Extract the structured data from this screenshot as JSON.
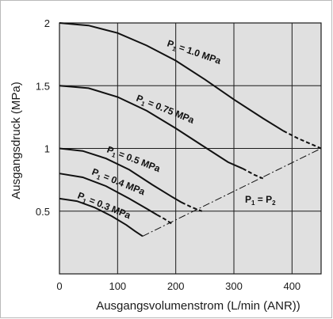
{
  "colors": {
    "plot_background": "#e0e0e0",
    "grid": "#1a1a1a",
    "curve": "#111111",
    "frame": "#b9b9b9"
  },
  "chart_data": {
    "type": "line",
    "title": "",
    "xlabel": "Ausgangsvolumenstrom (L/min (ANR))",
    "ylabel": "Ausgangsdruck (MPa)",
    "xlim": [
      0,
      450
    ],
    "ylim": [
      0,
      2
    ],
    "x_ticks": [
      "0",
      "100",
      "200",
      "300",
      "400"
    ],
    "y_ticks": [
      "0.5",
      "1",
      "1.5",
      "2"
    ],
    "grid": true,
    "legend": "none",
    "series": [
      {
        "name": "P1 = 1.0 MPa",
        "label_main": "P",
        "label_sub": "1",
        "label_rest": " = 1.0 MPa",
        "solid": [
          [
            0,
            2.0
          ],
          [
            50,
            1.98
          ],
          [
            100,
            1.92
          ],
          [
            150,
            1.82
          ],
          [
            200,
            1.7
          ],
          [
            250,
            1.55
          ],
          [
            300,
            1.39
          ],
          [
            350,
            1.24
          ],
          [
            385,
            1.14
          ]
        ],
        "dashed": [
          [
            385,
            1.14
          ],
          [
            410,
            1.08
          ],
          [
            450,
            1.0
          ]
        ]
      },
      {
        "name": "P1 = 0.75 MPa",
        "label_main": "P",
        "label_sub": "1",
        "label_rest": " = 0.75 MPa",
        "solid": [
          [
            0,
            1.5
          ],
          [
            50,
            1.48
          ],
          [
            100,
            1.41
          ],
          [
            150,
            1.3
          ],
          [
            200,
            1.16
          ],
          [
            250,
            1.01
          ],
          [
            290,
            0.89
          ],
          [
            315,
            0.84
          ]
        ],
        "dashed": [
          [
            315,
            0.84
          ],
          [
            335,
            0.79
          ],
          [
            350,
            0.76
          ]
        ]
      },
      {
        "name": "P1 = 0.5 MPa",
        "label_main": "P",
        "label_sub": "1",
        "label_rest": " = 0.5 MPa",
        "solid": [
          [
            0,
            1.0
          ],
          [
            40,
            0.98
          ],
          [
            80,
            0.92
          ],
          [
            120,
            0.83
          ],
          [
            160,
            0.71
          ],
          [
            195,
            0.61
          ],
          [
            210,
            0.57
          ]
        ],
        "dashed": [
          [
            210,
            0.57
          ],
          [
            228,
            0.53
          ],
          [
            245,
            0.5
          ]
        ]
      },
      {
        "name": "P1 = 0.4 MPa",
        "label_main": "P",
        "label_sub": "1",
        "label_rest": " = 0.4 MPa",
        "solid": [
          [
            0,
            0.8
          ],
          [
            40,
            0.77
          ],
          [
            80,
            0.7
          ],
          [
            120,
            0.6
          ],
          [
            150,
            0.52
          ],
          [
            168,
            0.47
          ]
        ],
        "dashed": [
          [
            168,
            0.47
          ],
          [
            180,
            0.44
          ],
          [
            193,
            0.4
          ]
        ]
      },
      {
        "name": "P1 = 0.3 MPa",
        "label_main": "P",
        "label_sub": "1",
        "label_rest": " = 0.3 MPa",
        "solid": [
          [
            0,
            0.6
          ],
          [
            30,
            0.58
          ],
          [
            60,
            0.53
          ],
          [
            90,
            0.46
          ],
          [
            115,
            0.39
          ],
          [
            130,
            0.34
          ],
          [
            143,
            0.3
          ]
        ],
        "dashed": []
      }
    ],
    "boundary_line": {
      "name": "P1 = P2",
      "label_main": "P",
      "label_sub": "1",
      "label_mid": " = P",
      "label_sub2": "2",
      "style": "dash-dot",
      "points": [
        [
          143,
          0.3
        ],
        [
          450,
          1.0
        ]
      ]
    }
  }
}
